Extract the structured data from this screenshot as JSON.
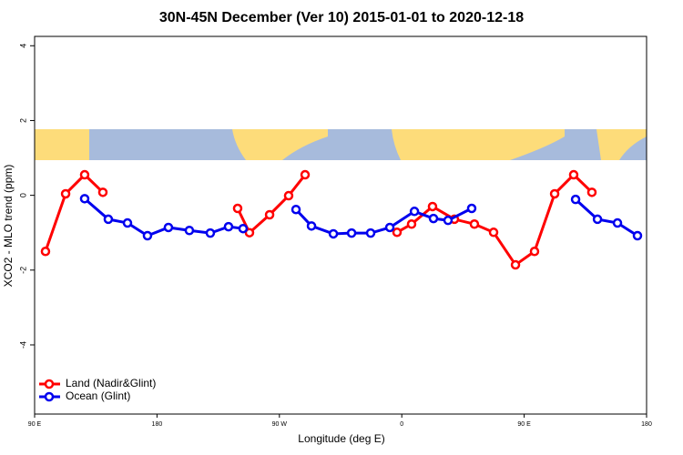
{
  "chart_data": {
    "type": "line",
    "title": "30N-45N December (Ver 10)   2015-01-01 to 2020-12-18",
    "x_label": "Longitude (deg E)",
    "y_label": "XCO2 - MLO trend (ppm)",
    "xlim": [
      90,
      540
    ],
    "xticks": [
      {
        "value": 90,
        "label": "90 E"
      },
      180,
      {
        "value": 270,
        "label": "90 W"
      },
      {
        "value": 360,
        "label": "0"
      },
      {
        "value": 450,
        "label": "90 E"
      },
      {
        "value": 540,
        "label": "180"
      }
    ],
    "ylim": [
      -5.85,
      4.25
    ],
    "yticks": [
      -4,
      -2,
      0,
      2,
      4
    ],
    "legend": "bottom-left",
    "series": [
      {
        "name": "Land (Nadir&Glint)",
        "color": "#ff0000",
        "x": [
          98,
          112.8,
          126.8,
          140.2,
          null,
          239.3,
          248,
          262.8,
          276.8,
          288.9,
          null,
          356.5,
          367.2,
          382.6,
          398.7,
          413.4,
          427.5,
          443.6,
          457.6,
          472.4,
          486.4,
          499.8
        ],
        "values": [
          -1.5,
          0.04,
          0.55,
          0.08,
          null,
          -0.35,
          -1.0,
          -0.52,
          -0.01,
          0.55,
          null,
          -0.99,
          -0.77,
          -0.3,
          -0.64,
          -0.77,
          -0.99,
          -1.86,
          -1.5,
          0.04,
          0.55,
          0.08
        ]
      },
      {
        "name": "Ocean (Glint)",
        "color": "#0000ee",
        "x": [
          126.8,
          144.2,
          158.3,
          173,
          188.4,
          203.8,
          219.2,
          232.6,
          243.3,
          null,
          282.2,
          293.6,
          309.7,
          323.1,
          337.1,
          351.2,
          369.3,
          383.3,
          394,
          411.4,
          null,
          487.8,
          503.9,
          518.6,
          533.3
        ],
        "values": [
          -0.09,
          -0.64,
          -0.74,
          -1.08,
          -0.86,
          -0.94,
          -1.01,
          -0.84,
          -0.89,
          null,
          -0.38,
          -0.82,
          -1.03,
          -1.01,
          -1.01,
          -0.86,
          -0.43,
          -0.62,
          -0.67,
          -0.35,
          null,
          -0.11,
          -0.64,
          -0.74,
          -1.08
        ]
      }
    ]
  }
}
